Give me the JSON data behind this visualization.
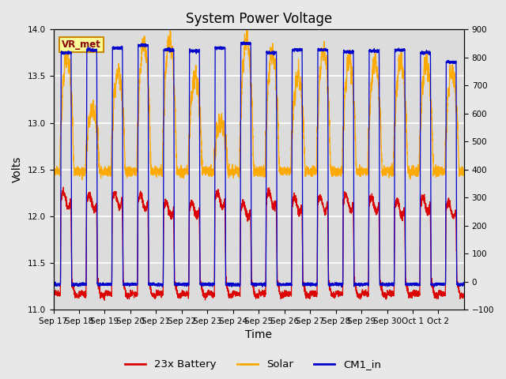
{
  "title": "System Power Voltage",
  "xlabel": "Time",
  "ylabel": "Volts",
  "left_ylim": [
    11.0,
    14.0
  ],
  "right_ylim": [
    -100,
    900
  ],
  "left_yticks": [
    11.0,
    11.5,
    12.0,
    12.5,
    13.0,
    13.5,
    14.0
  ],
  "right_yticks": [
    -100,
    0,
    100,
    200,
    300,
    400,
    500,
    600,
    700,
    800,
    900
  ],
  "xtick_labels": [
    "Sep 17",
    "Sep 18",
    "Sep 19",
    "Sep 20",
    "Sep 21",
    "Sep 22",
    "Sep 23",
    "Sep 24",
    "Sep 25",
    "Sep 26",
    "Sep 27",
    "Sep 28",
    "Sep 29",
    "Sep 30",
    "Oct 1",
    "Oct 2"
  ],
  "n_days": 16,
  "battery_color": "#dd0000",
  "solar_color": "#ffaa00",
  "cm1_color": "#0000cc",
  "annotation_text": "VR_met",
  "annotation_bg": "#ffff99",
  "annotation_border": "#cc8800",
  "plot_bg_color": "#dcdcdc",
  "fig_bg_color": "#e8e8e8",
  "legend_labels": [
    "23x Battery",
    "Solar",
    "CM1_in"
  ],
  "grid_color": "#ffffff",
  "title_fontsize": 12,
  "axis_fontsize": 10,
  "tick_fontsize": 7.5
}
